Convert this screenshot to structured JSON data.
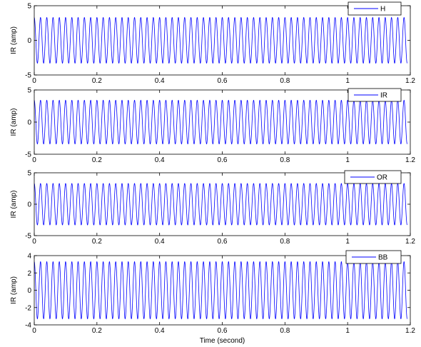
{
  "colors": {
    "line": "#0000ff",
    "axes": "#000000",
    "background": "#ffffff"
  },
  "chart_data": [
    {
      "type": "line",
      "ylabel": "IR (amp)",
      "xlabel": "",
      "xlim": [
        0,
        1.2
      ],
      "ylim": [
        -5,
        5
      ],
      "xticks": [
        "0",
        "0.2",
        "0.4",
        "0.6",
        "0.8",
        "1",
        "1.2"
      ],
      "yticks": [
        "-5",
        "0",
        "5"
      ],
      "legend": {
        "label": "H",
        "placement": "top-right"
      },
      "series": [
        {
          "name": "H",
          "signal": {
            "amplitude": 3.3,
            "frequency_hz": 50,
            "t_start": 0,
            "t_end": 1.19
          }
        }
      ]
    },
    {
      "type": "line",
      "ylabel": "IR (amp)",
      "xlabel": "",
      "xlim": [
        0,
        1.2
      ],
      "ylim": [
        -5,
        5
      ],
      "xticks": [
        "0",
        "0.2",
        "0.4",
        "0.6",
        "0.8",
        "1",
        "1.2"
      ],
      "yticks": [
        "-5",
        "0",
        "5"
      ],
      "legend": {
        "label": "IR",
        "placement": "top-right"
      },
      "series": [
        {
          "name": "IR",
          "signal": {
            "amplitude": 3.4,
            "frequency_hz": 50,
            "t_start": 0,
            "t_end": 1.19
          }
        }
      ]
    },
    {
      "type": "line",
      "ylabel": "IR (amp)",
      "xlabel": "",
      "xlim": [
        0,
        1.2
      ],
      "ylim": [
        -5,
        5
      ],
      "xticks": [
        "0",
        "0.2",
        "0.4",
        "0.6",
        "0.8",
        "1",
        "1.2"
      ],
      "yticks": [
        "-5",
        "0",
        "5"
      ],
      "legend": {
        "label": "OR",
        "placement": "top-right"
      },
      "series": [
        {
          "name": "OR",
          "signal": {
            "amplitude": 3.3,
            "frequency_hz": 50,
            "t_start": 0,
            "t_end": 1.19
          }
        }
      ]
    },
    {
      "type": "line",
      "ylabel": "IR (amp)",
      "xlabel": "Time (second)",
      "xlim": [
        0,
        1.2
      ],
      "ylim": [
        -4,
        4
      ],
      "xticks": [
        "0",
        "0.2",
        "0.4",
        "0.6",
        "0.8",
        "1",
        "1.2"
      ],
      "yticks": [
        "-4",
        "-2",
        "0",
        "2",
        "4"
      ],
      "legend": {
        "label": "BB",
        "placement": "top-right"
      },
      "series": [
        {
          "name": "BB",
          "signal": {
            "amplitude": 3.3,
            "frequency_hz": 50,
            "t_start": 0,
            "t_end": 1.19
          }
        }
      ]
    }
  ]
}
